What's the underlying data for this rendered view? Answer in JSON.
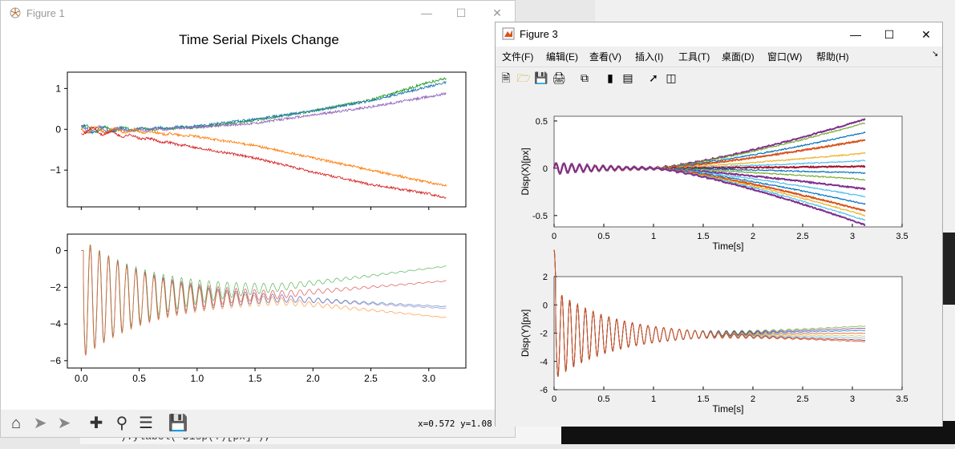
{
  "figure1": {
    "window_title": "Figure 1",
    "chart_title": "Time Serial Pixels Change",
    "coords_readout": "x=0.572 y=1.08",
    "toolbar": [
      "home-icon",
      "back-icon",
      "forward-icon",
      "pan-icon",
      "zoom-icon",
      "configure-icon",
      "save-icon"
    ]
  },
  "figure3": {
    "window_title": "Figure 3",
    "menu": [
      "文件(F)",
      "编辑(E)",
      "查看(V)",
      "插入(I)",
      "工具(T)",
      "桌面(D)",
      "窗口(W)",
      "帮助(H)"
    ],
    "toolbar": [
      "new-icon",
      "open-icon",
      "save-icon",
      "print-icon",
      "copy-figure-icon",
      "colorbar-icon",
      "legend-icon",
      "pointer-icon",
      "property-icon"
    ]
  },
  "background_code": "):ylabel('Disp(Y)[px]');",
  "chart_data": [
    {
      "type": "line",
      "title": "Time Serial Pixels Change",
      "xlim": [
        -0.12,
        3.32
      ],
      "ylim": [
        -1.9,
        1.4
      ],
      "x_ticks": [],
      "y_ticks": [
        "−1",
        "0",
        "1"
      ],
      "y_tick_values": [
        -1,
        0,
        1
      ],
      "series": [
        {
          "color": "#2ca02c",
          "x": [
            0,
            0.5,
            1,
            1.5,
            2,
            2.5,
            3,
            3.15
          ],
          "y": [
            0,
            0,
            0.05,
            0.22,
            0.45,
            0.72,
            1.15,
            1.25
          ]
        },
        {
          "color": "#1f77b4",
          "x": [
            0,
            0.5,
            1,
            1.5,
            2,
            2.5,
            3,
            3.15
          ],
          "y": [
            0,
            0,
            0.08,
            0.25,
            0.45,
            0.7,
            1.05,
            1.15
          ]
        },
        {
          "color": "#9467bd",
          "x": [
            0,
            0.5,
            1,
            1.5,
            2,
            2.5,
            3,
            3.15
          ],
          "y": [
            0,
            -0.02,
            0.05,
            0.15,
            0.35,
            0.55,
            0.8,
            0.88
          ]
        },
        {
          "color": "#ff7f0e",
          "x": [
            0,
            0.5,
            1,
            1.5,
            2,
            2.5,
            3,
            3.15
          ],
          "y": [
            0,
            -0.05,
            -0.18,
            -0.4,
            -0.7,
            -1.0,
            -1.3,
            -1.38
          ]
        },
        {
          "color": "#d62728",
          "x": [
            0,
            0.5,
            1,
            1.5,
            2,
            2.5,
            3,
            3.15
          ],
          "y": [
            0,
            -0.2,
            -0.45,
            -0.7,
            -1.05,
            -1.35,
            -1.58,
            -1.68
          ]
        }
      ]
    },
    {
      "type": "line",
      "title": "",
      "xlim": [
        -0.12,
        3.32
      ],
      "ylim": [
        -6.4,
        0.9
      ],
      "x_ticks": [
        "0.0",
        "0.5",
        "1.0",
        "1.5",
        "2.0",
        "2.5",
        "3.0"
      ],
      "x_tick_values": [
        0,
        0.5,
        1,
        1.5,
        2,
        2.5,
        3
      ],
      "y_ticks": [
        "−6",
        "−4",
        "−2",
        "0"
      ],
      "y_tick_values": [
        -6,
        -4,
        -2,
        0
      ],
      "series": [
        {
          "color": "#2ca02c",
          "x": [
            0,
            1.7,
            3.15
          ],
          "y": [
            -2.6,
            -2.0,
            -0.85
          ]
        },
        {
          "color": "#d62728",
          "x": [
            0,
            1.7,
            3.15
          ],
          "y": [
            -2.6,
            -2.4,
            -1.65
          ]
        },
        {
          "color": "#1f77b4",
          "x": [
            0,
            1.7,
            3.15
          ],
          "y": [
            -2.6,
            -2.6,
            -3.05
          ]
        },
        {
          "color": "#9467bd",
          "x": [
            0,
            1.7,
            3.15
          ],
          "y": [
            -2.6,
            -2.6,
            -3.15
          ]
        },
        {
          "color": "#ff7f0e",
          "x": [
            0,
            1.7,
            3.15
          ],
          "y": [
            -2.6,
            -2.75,
            -3.65
          ]
        }
      ]
    },
    {
      "type": "line",
      "title": "",
      "xlabel": "Time[s]",
      "ylabel": "Disp(X)[px]",
      "xlim": [
        0,
        3.5
      ],
      "ylim": [
        -0.62,
        0.55
      ],
      "x_ticks": [
        "0",
        "0.5",
        "1",
        "1.5",
        "2",
        "2.5",
        "3",
        "3.5"
      ],
      "x_tick_values": [
        0,
        0.5,
        1,
        1.5,
        2,
        2.5,
        3,
        3.5
      ],
      "y_ticks": [
        "-0.5",
        "0",
        "0.5"
      ],
      "y_tick_values": [
        -0.5,
        0,
        0.5
      ],
      "series_end_values": [
        0.52,
        0.48,
        0.38,
        0.3,
        0.16,
        0.08,
        0.02,
        -0.05,
        -0.12,
        -0.22,
        -0.3,
        -0.38,
        -0.45,
        -0.5,
        -0.55,
        -0.6
      ],
      "series_colors": [
        "#7e2f8e",
        "#77ac30",
        "#0072bd",
        "#d95319",
        "#edb120",
        "#4dbeee",
        "#a2142f",
        "#0072bd",
        "#77ac30",
        "#7e2f8e",
        "#4dbeee",
        "#0072bd",
        "#d95319",
        "#edb120",
        "#4dbeee",
        "#7e2f8e"
      ]
    },
    {
      "type": "line",
      "title": "",
      "xlabel": "Time[s]",
      "ylabel": "Disp(Y)[px]",
      "xlim": [
        0,
        3.5
      ],
      "ylim": [
        -6,
        2
      ],
      "x_ticks": [
        "0",
        "0.5",
        "1",
        "1.5",
        "2",
        "2.5",
        "3",
        "3.5"
      ],
      "x_tick_values": [
        0,
        0.5,
        1,
        1.5,
        2,
        2.5,
        3,
        3.5
      ],
      "y_ticks": [
        "-6",
        "-4",
        "-2",
        "0",
        "2"
      ],
      "y_tick_values": [
        -6,
        -4,
        -2,
        0,
        2
      ],
      "series_end_values": [
        -1.5,
        -1.65,
        -1.8,
        -2.0,
        -2.2,
        -2.35,
        -2.5,
        -2.6
      ],
      "series_colors": [
        "#77ac30",
        "#7e2f8e",
        "#0072bd",
        "#d95319",
        "#edb120",
        "#4dbeee",
        "#a2142f",
        "#d95319"
      ]
    }
  ]
}
